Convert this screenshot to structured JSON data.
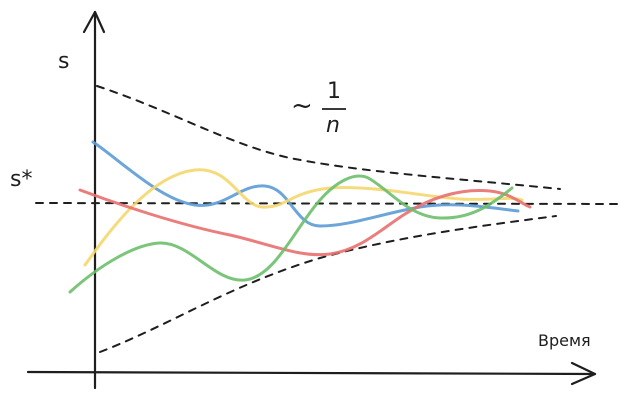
{
  "labels": {
    "y_axis": "s",
    "x_axis": "Время",
    "target": "s*",
    "rate_tilde": "~",
    "rate_numerator": "1",
    "rate_denominator": "n"
  },
  "colors": {
    "axis": "#1e1e1e",
    "blue": "#5b9bd5",
    "yellow": "#f5d76e",
    "red": "#e8706e",
    "green": "#6cbf6c"
  },
  "curves": [
    {
      "key": "blue",
      "color": "#5b9bd5"
    },
    {
      "key": "yellow",
      "color": "#f5d76e"
    },
    {
      "key": "red",
      "color": "#e8706e"
    },
    {
      "key": "green",
      "color": "#6cbf6c"
    }
  ]
}
